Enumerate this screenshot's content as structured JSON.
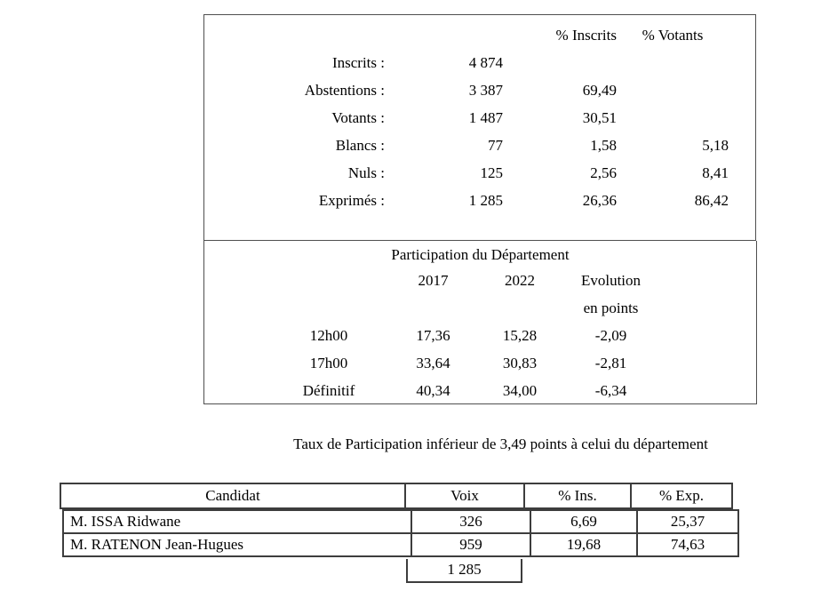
{
  "colors": {
    "text": "#000000",
    "thin_border": "#4f4f4f",
    "table_border": "#3d3d3d",
    "background": "#ffffff"
  },
  "turnout": {
    "header_pct_inscrits": "% Inscrits",
    "header_pct_votants": "% Votants",
    "rows": [
      {
        "label": "Inscrits :",
        "count": "4 874",
        "pct_inscrits": "",
        "pct_votants": ""
      },
      {
        "label": "Abstentions :",
        "count": "3 387",
        "pct_inscrits": "69,49",
        "pct_votants": ""
      },
      {
        "label": "Votants :",
        "count": "1 487",
        "pct_inscrits": "30,51",
        "pct_votants": ""
      },
      {
        "label": "Blancs :",
        "count": "77",
        "pct_inscrits": "1,58",
        "pct_votants": "5,18"
      },
      {
        "label": "Nuls :",
        "count": "125",
        "pct_inscrits": "2,56",
        "pct_votants": "8,41"
      },
      {
        "label": "Exprimés :",
        "count": "1 285",
        "pct_inscrits": "26,36",
        "pct_votants": "86,42"
      }
    ]
  },
  "participation": {
    "title": "Participation du Département",
    "year_2017": "2017",
    "year_2022": "2022",
    "evolution_line1": "Evolution",
    "evolution_line2": "en points",
    "rows": [
      {
        "label": "12h00",
        "y2017": "17,36",
        "y2022": "15,28",
        "evolution": "-2,09"
      },
      {
        "label": "17h00",
        "y2017": "33,64",
        "y2022": "30,83",
        "evolution": "-2,81"
      },
      {
        "label": "Définitif",
        "y2017": "40,34",
        "y2022": "34,00",
        "evolution": "-6,34"
      }
    ]
  },
  "note": "Taux de Participation inférieur de 3,49 points à celui du département",
  "candidates": {
    "headers": {
      "candidat": "Candidat",
      "voix": "Voix",
      "pct_ins": "% Ins.",
      "pct_exp": "% Exp."
    },
    "rows": [
      {
        "name": "M. ISSA Ridwane",
        "voix": "326",
        "pct_ins": "6,69",
        "pct_exp": "25,37"
      },
      {
        "name": "M. RATENON Jean-Hugues",
        "voix": "959",
        "pct_ins": "19,68",
        "pct_exp": "74,63"
      }
    ],
    "total_voix": "1 285"
  }
}
